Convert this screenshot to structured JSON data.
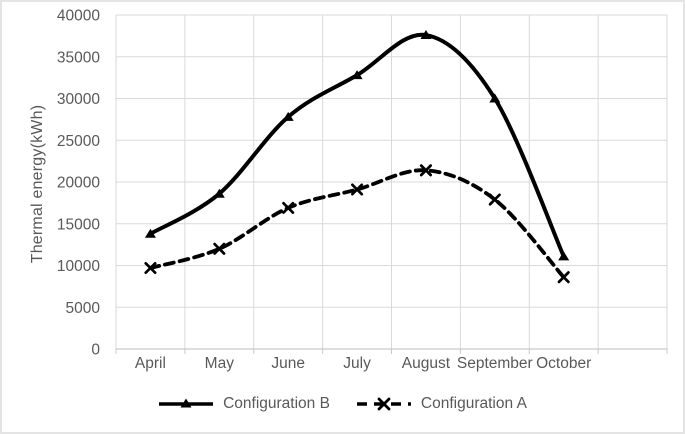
{
  "chart_data": {
    "type": "line",
    "categories": [
      "April",
      "May",
      "June",
      "July",
      "August",
      "September",
      "October"
    ],
    "series": [
      {
        "name": "Configuration B",
        "values": [
          13800,
          18600,
          27800,
          32800,
          37600,
          30000,
          11100
        ],
        "line_style": "solid",
        "marker": "triangle",
        "color": "#000000"
      },
      {
        "name": "Configuration A",
        "values": [
          9700,
          12000,
          16900,
          19100,
          21400,
          17900,
          8600
        ],
        "line_style": "dashed",
        "marker": "x",
        "color": "#000000"
      }
    ],
    "title": "",
    "xlabel": "",
    "ylabel": "Thermal energy(kWh)",
    "ylim": [
      0,
      40000
    ],
    "ytick_step": 5000,
    "yticks": [
      "0",
      "5000",
      "10000",
      "15000",
      "20000",
      "25000",
      "30000",
      "35000",
      "40000"
    ],
    "grid": true,
    "smoothed_lines": true,
    "legend_position": "bottom",
    "colors": {
      "axis_text": "#595959",
      "gridline": "#d9d9d9",
      "axis_line": "#c9c9c9",
      "background": "#ffffff",
      "frame_border": "#e4e4e4"
    }
  }
}
